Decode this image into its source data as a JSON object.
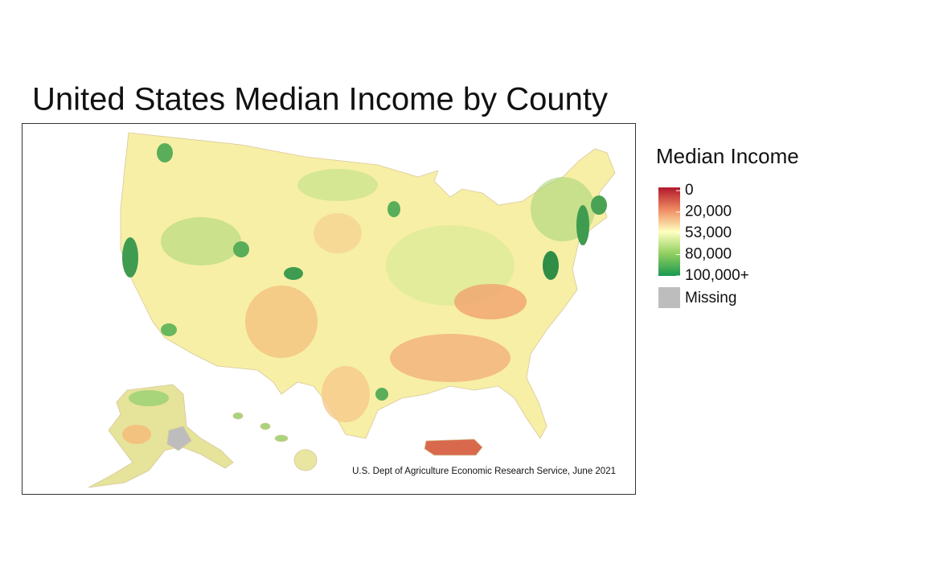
{
  "title": "United States Median Income by County",
  "source": "U.S. Dept of Agriculture Economic Research Service, June 2021",
  "legend": {
    "title": "Median Income",
    "ticks": [
      0,
      {
        "value": 20000,
        "label": "20,000"
      },
      {
        "value": 53000,
        "label": "53,000"
      },
      {
        "value": 80000,
        "label": "80,000"
      },
      {
        "value": 100000,
        "label": "100,000+"
      }
    ],
    "colors": [
      "#b2182b",
      "#ef8a62",
      "#ffffbf",
      "#91cf60",
      "#1a9850"
    ],
    "missing": {
      "label": "Missing",
      "color": "#bdbdbd"
    }
  }
}
